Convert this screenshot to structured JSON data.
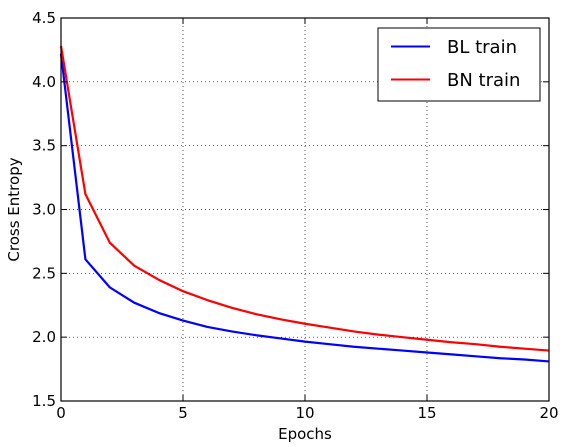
{
  "chart_data": {
    "type": "line",
    "x": [
      0,
      1,
      2,
      3,
      4,
      5,
      6,
      7,
      8,
      9,
      10,
      11,
      12,
      13,
      14,
      15,
      16,
      17,
      18,
      19,
      20
    ],
    "series": [
      {
        "name": "BL train",
        "color": "#0000ff",
        "values": [
          4.22,
          2.61,
          2.39,
          2.27,
          2.19,
          2.13,
          2.08,
          2.045,
          2.015,
          1.99,
          1.965,
          1.945,
          1.925,
          1.91,
          1.895,
          1.88,
          1.865,
          1.85,
          1.835,
          1.825,
          1.81
        ]
      },
      {
        "name": "BN train",
        "color": "#ff0000",
        "values": [
          4.28,
          3.12,
          2.74,
          2.56,
          2.45,
          2.36,
          2.29,
          2.23,
          2.18,
          2.14,
          2.105,
          2.075,
          2.045,
          2.02,
          2.0,
          1.98,
          1.96,
          1.945,
          1.925,
          1.91,
          1.895
        ]
      }
    ],
    "xlabel": "Epochs",
    "ylabel": "Cross Entropy",
    "xlim": [
      0,
      20
    ],
    "ylim": [
      1.5,
      4.5
    ],
    "xticks": [
      "0",
      "5",
      "10",
      "15",
      "20"
    ],
    "yticks": [
      "1.5",
      "2.0",
      "2.5",
      "3.0",
      "3.5",
      "4.0",
      "4.5"
    ],
    "grid": true,
    "legend_position": "top-right"
  }
}
